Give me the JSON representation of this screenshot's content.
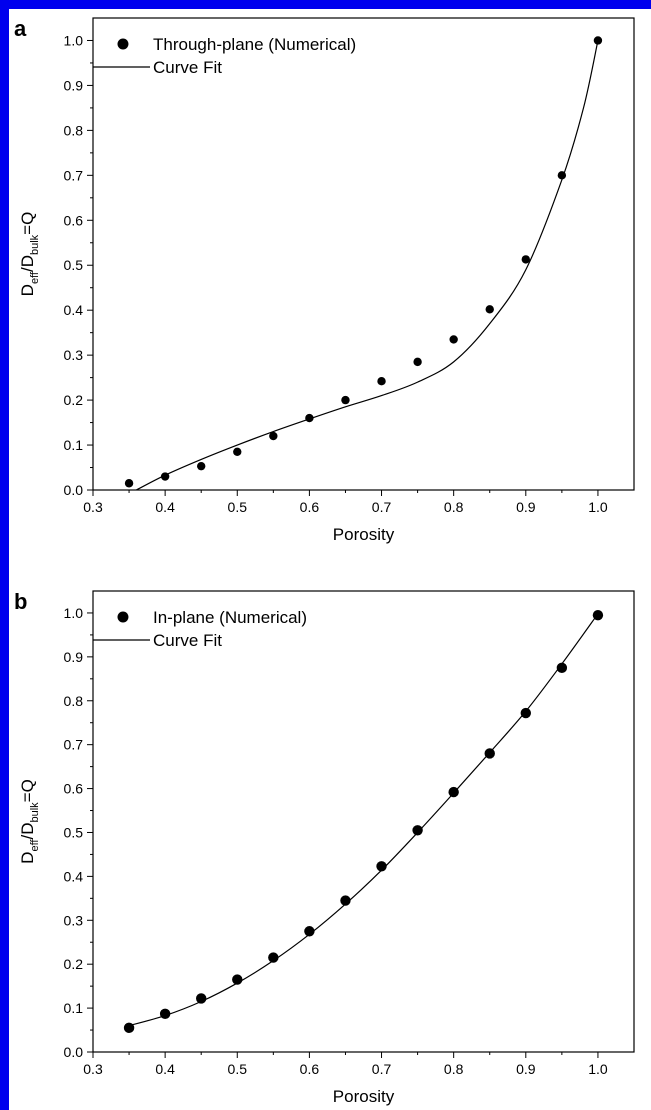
{
  "colors": {
    "frame": "#0000ee",
    "ink": "#000000",
    "background": "#ffffff"
  },
  "chart_data": [
    {
      "type": "scatter",
      "panel_label": "a",
      "xlabel": "Porosity",
      "ylabel": {
        "main": "D",
        "sub1": "eff",
        "mid": "/D",
        "sub2": "bulk",
        "tail": "=Q"
      },
      "xlim": [
        0.3,
        1.05
      ],
      "ylim": [
        0.0,
        1.05
      ],
      "x_ticks": [
        "0.3",
        "0.4",
        "0.5",
        "0.6",
        "0.7",
        "0.8",
        "0.9",
        "1.0"
      ],
      "y_ticks": [
        "0.0",
        "0.1",
        "0.2",
        "0.3",
        "0.4",
        "0.5",
        "0.6",
        "0.7",
        "0.8",
        "0.9",
        "1.0"
      ],
      "legend": {
        "position": "top-left",
        "scatter_label": "Through-plane (Numerical)",
        "line_label": "Curve Fit"
      },
      "series": [
        {
          "name": "Through-plane (Numerical)",
          "kind": "scatter",
          "x": [
            0.35,
            0.4,
            0.45,
            0.5,
            0.55,
            0.6,
            0.65,
            0.7,
            0.75,
            0.8,
            0.85,
            0.9,
            0.95,
            1.0
          ],
          "y": [
            0.015,
            0.03,
            0.053,
            0.085,
            0.12,
            0.16,
            0.2,
            0.242,
            0.285,
            0.335,
            0.402,
            0.513,
            0.7,
            1.0
          ]
        },
        {
          "name": "Curve Fit",
          "kind": "line",
          "x": [
            0.36,
            0.4,
            0.45,
            0.5,
            0.55,
            0.6,
            0.65,
            0.7,
            0.75,
            0.8,
            0.85,
            0.9,
            0.95,
            0.98,
            1.0
          ],
          "y": [
            0.0,
            0.033,
            0.068,
            0.1,
            0.13,
            0.158,
            0.185,
            0.21,
            0.24,
            0.285,
            0.37,
            0.49,
            0.69,
            0.85,
            1.0
          ]
        }
      ]
    },
    {
      "type": "scatter",
      "panel_label": "b",
      "xlabel": "Porosity",
      "ylabel": {
        "main": "D",
        "sub1": "eff",
        "mid": "/D",
        "sub2": "bulk",
        "tail": "=Q"
      },
      "xlim": [
        0.3,
        1.05
      ],
      "ylim": [
        0.0,
        1.05
      ],
      "x_ticks": [
        "0.3",
        "0.4",
        "0.5",
        "0.6",
        "0.7",
        "0.8",
        "0.9",
        "1.0"
      ],
      "y_ticks": [
        "0.0",
        "0.1",
        "0.2",
        "0.3",
        "0.4",
        "0.5",
        "0.6",
        "0.7",
        "0.8",
        "0.9",
        "1.0"
      ],
      "legend": {
        "position": "top-left",
        "scatter_label": "In-plane (Numerical)",
        "line_label": "Curve Fit"
      },
      "series": [
        {
          "name": "In-plane (Numerical)",
          "kind": "scatter",
          "x": [
            0.35,
            0.4,
            0.45,
            0.5,
            0.55,
            0.6,
            0.65,
            0.7,
            0.75,
            0.8,
            0.85,
            0.9,
            0.95,
            1.0
          ],
          "y": [
            0.055,
            0.087,
            0.122,
            0.165,
            0.215,
            0.275,
            0.345,
            0.423,
            0.505,
            0.592,
            0.68,
            0.772,
            0.875,
            0.995
          ]
        },
        {
          "name": "Curve Fit",
          "kind": "line",
          "x": [
            0.35,
            0.4,
            0.45,
            0.5,
            0.55,
            0.6,
            0.65,
            0.7,
            0.75,
            0.8,
            0.85,
            0.9,
            0.95,
            1.0
          ],
          "y": [
            0.06,
            0.083,
            0.115,
            0.157,
            0.208,
            0.268,
            0.337,
            0.414,
            0.5,
            0.59,
            0.682,
            0.776,
            0.884,
            0.998
          ]
        }
      ]
    }
  ]
}
